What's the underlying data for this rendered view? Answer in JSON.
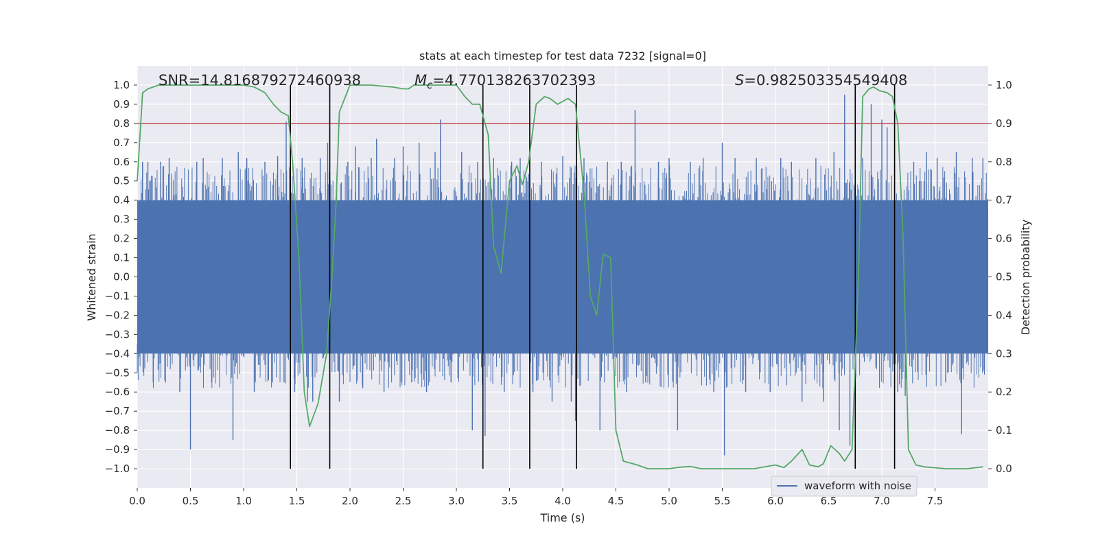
{
  "chart_data": {
    "type": "line",
    "title": "stats at each timestep for test data 7232 [signal=0]",
    "xlabel": "Time (s)",
    "ylabel_left": "Whitened strain",
    "ylabel_right": "Detection probability",
    "xlim": [
      0.0,
      8.0
    ],
    "ylim_left": [
      -1.1,
      1.1
    ],
    "ylim_right": [
      -0.05,
      1.05
    ],
    "x_ticks": [
      "0.0",
      "0.5",
      "1.0",
      "1.5",
      "2.0",
      "2.5",
      "3.0",
      "3.5",
      "4.0",
      "4.5",
      "5.0",
      "5.5",
      "6.0",
      "6.5",
      "7.0",
      "7.5"
    ],
    "y_ticks_left": [
      "1.0",
      "0.9",
      "0.8",
      "0.7",
      "0.6",
      "0.5",
      "0.4",
      "0.3",
      "0.2",
      "0.1",
      "0.0",
      "−0.1",
      "−0.2",
      "−0.3",
      "−0.4",
      "−0.5",
      "−0.6",
      "−0.7",
      "−0.8",
      "−0.9",
      "−1.0"
    ],
    "y_ticks_right": [
      "1.0",
      "0.9",
      "0.8",
      "0.7",
      "0.6",
      "0.5",
      "0.4",
      "0.3",
      "0.2",
      "0.1",
      "0.0"
    ],
    "grid": true,
    "annotations": {
      "snr": "SNR=14.816879272460938",
      "mc_symbol": "M",
      "mc_sub": "c",
      "mc_value": "=4.770138263702393",
      "s_symbol": "S",
      "s_value": "=0.982503354549408"
    },
    "threshold": {
      "value": 0.8,
      "axis": "left",
      "color": "#c44e52"
    },
    "vertical_markers": [
      1.44,
      1.81,
      3.25,
      3.69,
      4.13,
      6.75,
      7.12
    ],
    "waveform": {
      "name": "waveform with noise",
      "color": "#4c72b0",
      "core_band": [
        -0.4,
        0.4
      ],
      "spikes": [
        [
          0.05,
          0.6
        ],
        [
          0.1,
          0.6
        ],
        [
          0.15,
          -0.55
        ],
        [
          0.22,
          0.6
        ],
        [
          0.3,
          0.62
        ],
        [
          0.4,
          -0.6
        ],
        [
          0.5,
          -0.9
        ],
        [
          0.56,
          0.6
        ],
        [
          0.62,
          0.62
        ],
        [
          0.7,
          -0.55
        ],
        [
          0.8,
          0.62
        ],
        [
          0.9,
          -0.85
        ],
        [
          0.95,
          0.65
        ],
        [
          1.03,
          0.62
        ],
        [
          1.1,
          -0.6
        ],
        [
          1.2,
          0.6
        ],
        [
          1.27,
          -0.55
        ],
        [
          1.32,
          0.63
        ],
        [
          1.38,
          -0.55
        ],
        [
          1.4,
          0.81
        ],
        [
          1.48,
          -0.6
        ],
        [
          1.55,
          0.62
        ],
        [
          1.6,
          -0.65
        ],
        [
          1.65,
          -0.65
        ],
        [
          1.72,
          0.62
        ],
        [
          1.79,
          0.7
        ],
        [
          1.9,
          -0.65
        ],
        [
          1.98,
          0.6
        ],
        [
          2.05,
          0.68
        ],
        [
          2.12,
          -0.58
        ],
        [
          2.2,
          0.62
        ],
        [
          2.25,
          0.72
        ],
        [
          2.32,
          -0.6
        ],
        [
          2.42,
          0.62
        ],
        [
          2.5,
          0.68
        ],
        [
          2.58,
          -0.55
        ],
        [
          2.65,
          0.7
        ],
        [
          2.72,
          -0.6
        ],
        [
          2.8,
          0.65
        ],
        [
          2.85,
          0.82
        ],
        [
          2.95,
          -0.55
        ],
        [
          3.05,
          0.65
        ],
        [
          3.15,
          -0.8
        ],
        [
          3.2,
          0.6
        ],
        [
          3.27,
          -0.83
        ],
        [
          3.35,
          0.62
        ],
        [
          3.45,
          -0.6
        ],
        [
          3.52,
          0.6
        ],
        [
          3.6,
          0.62
        ],
        [
          3.72,
          -0.6
        ],
        [
          3.8,
          0.6
        ],
        [
          3.9,
          -0.65
        ],
        [
          4.0,
          0.63
        ],
        [
          4.08,
          -0.65
        ],
        [
          4.12,
          -0.75
        ],
        [
          4.2,
          0.62
        ],
        [
          4.35,
          -0.8
        ],
        [
          4.42,
          0.6
        ],
        [
          4.55,
          0.6
        ],
        [
          4.6,
          -0.6
        ],
        [
          4.68,
          0.87
        ],
        [
          4.78,
          -0.55
        ],
        [
          4.9,
          0.6
        ],
        [
          5.0,
          0.62
        ],
        [
          5.08,
          -0.8
        ],
        [
          5.2,
          0.6
        ],
        [
          5.32,
          0.62
        ],
        [
          5.42,
          -0.6
        ],
        [
          5.5,
          0.7
        ],
        [
          5.52,
          -0.93
        ],
        [
          5.62,
          0.62
        ],
        [
          5.72,
          -0.6
        ],
        [
          5.82,
          0.62
        ],
        [
          5.95,
          -0.6
        ],
        [
          6.05,
          0.62
        ],
        [
          6.15,
          0.6
        ],
        [
          6.25,
          -0.65
        ],
        [
          6.38,
          0.62
        ],
        [
          6.45,
          -0.65
        ],
        [
          6.55,
          0.65
        ],
        [
          6.6,
          -0.8
        ],
        [
          6.65,
          0.95
        ],
        [
          6.7,
          -0.88
        ],
        [
          6.82,
          0.62
        ],
        [
          6.9,
          0.9
        ],
        [
          7.0,
          0.82
        ],
        [
          7.05,
          0.78
        ],
        [
          7.15,
          -0.6
        ],
        [
          7.22,
          -0.62
        ],
        [
          7.3,
          0.6
        ],
        [
          7.42,
          0.65
        ],
        [
          7.52,
          0.62
        ],
        [
          7.6,
          -0.55
        ],
        [
          7.7,
          0.65
        ],
        [
          7.75,
          -0.82
        ],
        [
          7.85,
          0.62
        ],
        [
          7.95,
          0.62
        ]
      ]
    },
    "probability": {
      "color": "#55a868",
      "axis": "right",
      "points": [
        [
          0.0,
          0.75
        ],
        [
          0.05,
          0.98
        ],
        [
          0.1,
          0.99
        ],
        [
          0.2,
          1.0
        ],
        [
          0.5,
          1.0
        ],
        [
          0.8,
          1.0
        ],
        [
          1.0,
          1.0
        ],
        [
          1.1,
          0.995
        ],
        [
          1.2,
          0.98
        ],
        [
          1.28,
          0.95
        ],
        [
          1.35,
          0.93
        ],
        [
          1.42,
          0.92
        ],
        [
          1.46,
          0.8
        ],
        [
          1.52,
          0.55
        ],
        [
          1.57,
          0.2
        ],
        [
          1.62,
          0.11
        ],
        [
          1.7,
          0.17
        ],
        [
          1.78,
          0.3
        ],
        [
          1.83,
          0.5
        ],
        [
          1.87,
          0.7
        ],
        [
          1.9,
          0.93
        ],
        [
          2.0,
          1.0
        ],
        [
          2.2,
          1.0
        ],
        [
          2.4,
          0.995
        ],
        [
          2.5,
          0.99
        ],
        [
          2.55,
          0.99
        ],
        [
          2.6,
          1.0
        ],
        [
          3.0,
          1.0
        ],
        [
          3.08,
          0.97
        ],
        [
          3.15,
          0.95
        ],
        [
          3.22,
          0.95
        ],
        [
          3.3,
          0.87
        ],
        [
          3.35,
          0.58
        ],
        [
          3.42,
          0.51
        ],
        [
          3.5,
          0.75
        ],
        [
          3.57,
          0.79
        ],
        [
          3.62,
          0.74
        ],
        [
          3.68,
          0.8
        ],
        [
          3.75,
          0.95
        ],
        [
          3.83,
          0.97
        ],
        [
          3.88,
          0.965
        ],
        [
          3.95,
          0.95
        ],
        [
          4.05,
          0.965
        ],
        [
          4.12,
          0.95
        ],
        [
          4.2,
          0.72
        ],
        [
          4.26,
          0.45
        ],
        [
          4.32,
          0.4
        ],
        [
          4.38,
          0.56
        ],
        [
          4.45,
          0.55
        ],
        [
          4.5,
          0.1
        ],
        [
          4.57,
          0.02
        ],
        [
          4.7,
          0.01
        ],
        [
          4.8,
          0.0
        ],
        [
          5.0,
          0.0
        ],
        [
          5.1,
          0.004
        ],
        [
          5.2,
          0.006
        ],
        [
          5.3,
          0.0
        ],
        [
          5.8,
          0.0
        ],
        [
          5.9,
          0.005
        ],
        [
          6.0,
          0.01
        ],
        [
          6.08,
          0.003
        ],
        [
          6.15,
          0.02
        ],
        [
          6.25,
          0.05
        ],
        [
          6.32,
          0.01
        ],
        [
          6.4,
          0.005
        ],
        [
          6.45,
          0.013
        ],
        [
          6.52,
          0.06
        ],
        [
          6.6,
          0.04
        ],
        [
          6.65,
          0.02
        ],
        [
          6.72,
          0.05
        ],
        [
          6.78,
          0.5
        ],
        [
          6.82,
          0.97
        ],
        [
          6.88,
          0.99
        ],
        [
          6.92,
          0.995
        ],
        [
          6.98,
          0.985
        ],
        [
          7.05,
          0.98
        ],
        [
          7.1,
          0.97
        ],
        [
          7.15,
          0.9
        ],
        [
          7.2,
          0.6
        ],
        [
          7.25,
          0.05
        ],
        [
          7.32,
          0.01
        ],
        [
          7.4,
          0.005
        ],
        [
          7.6,
          0.0
        ],
        [
          7.8,
          0.0
        ],
        [
          7.95,
          0.005
        ]
      ]
    },
    "legend": {
      "location": "lower-right",
      "entries": [
        "waveform with noise"
      ]
    }
  }
}
